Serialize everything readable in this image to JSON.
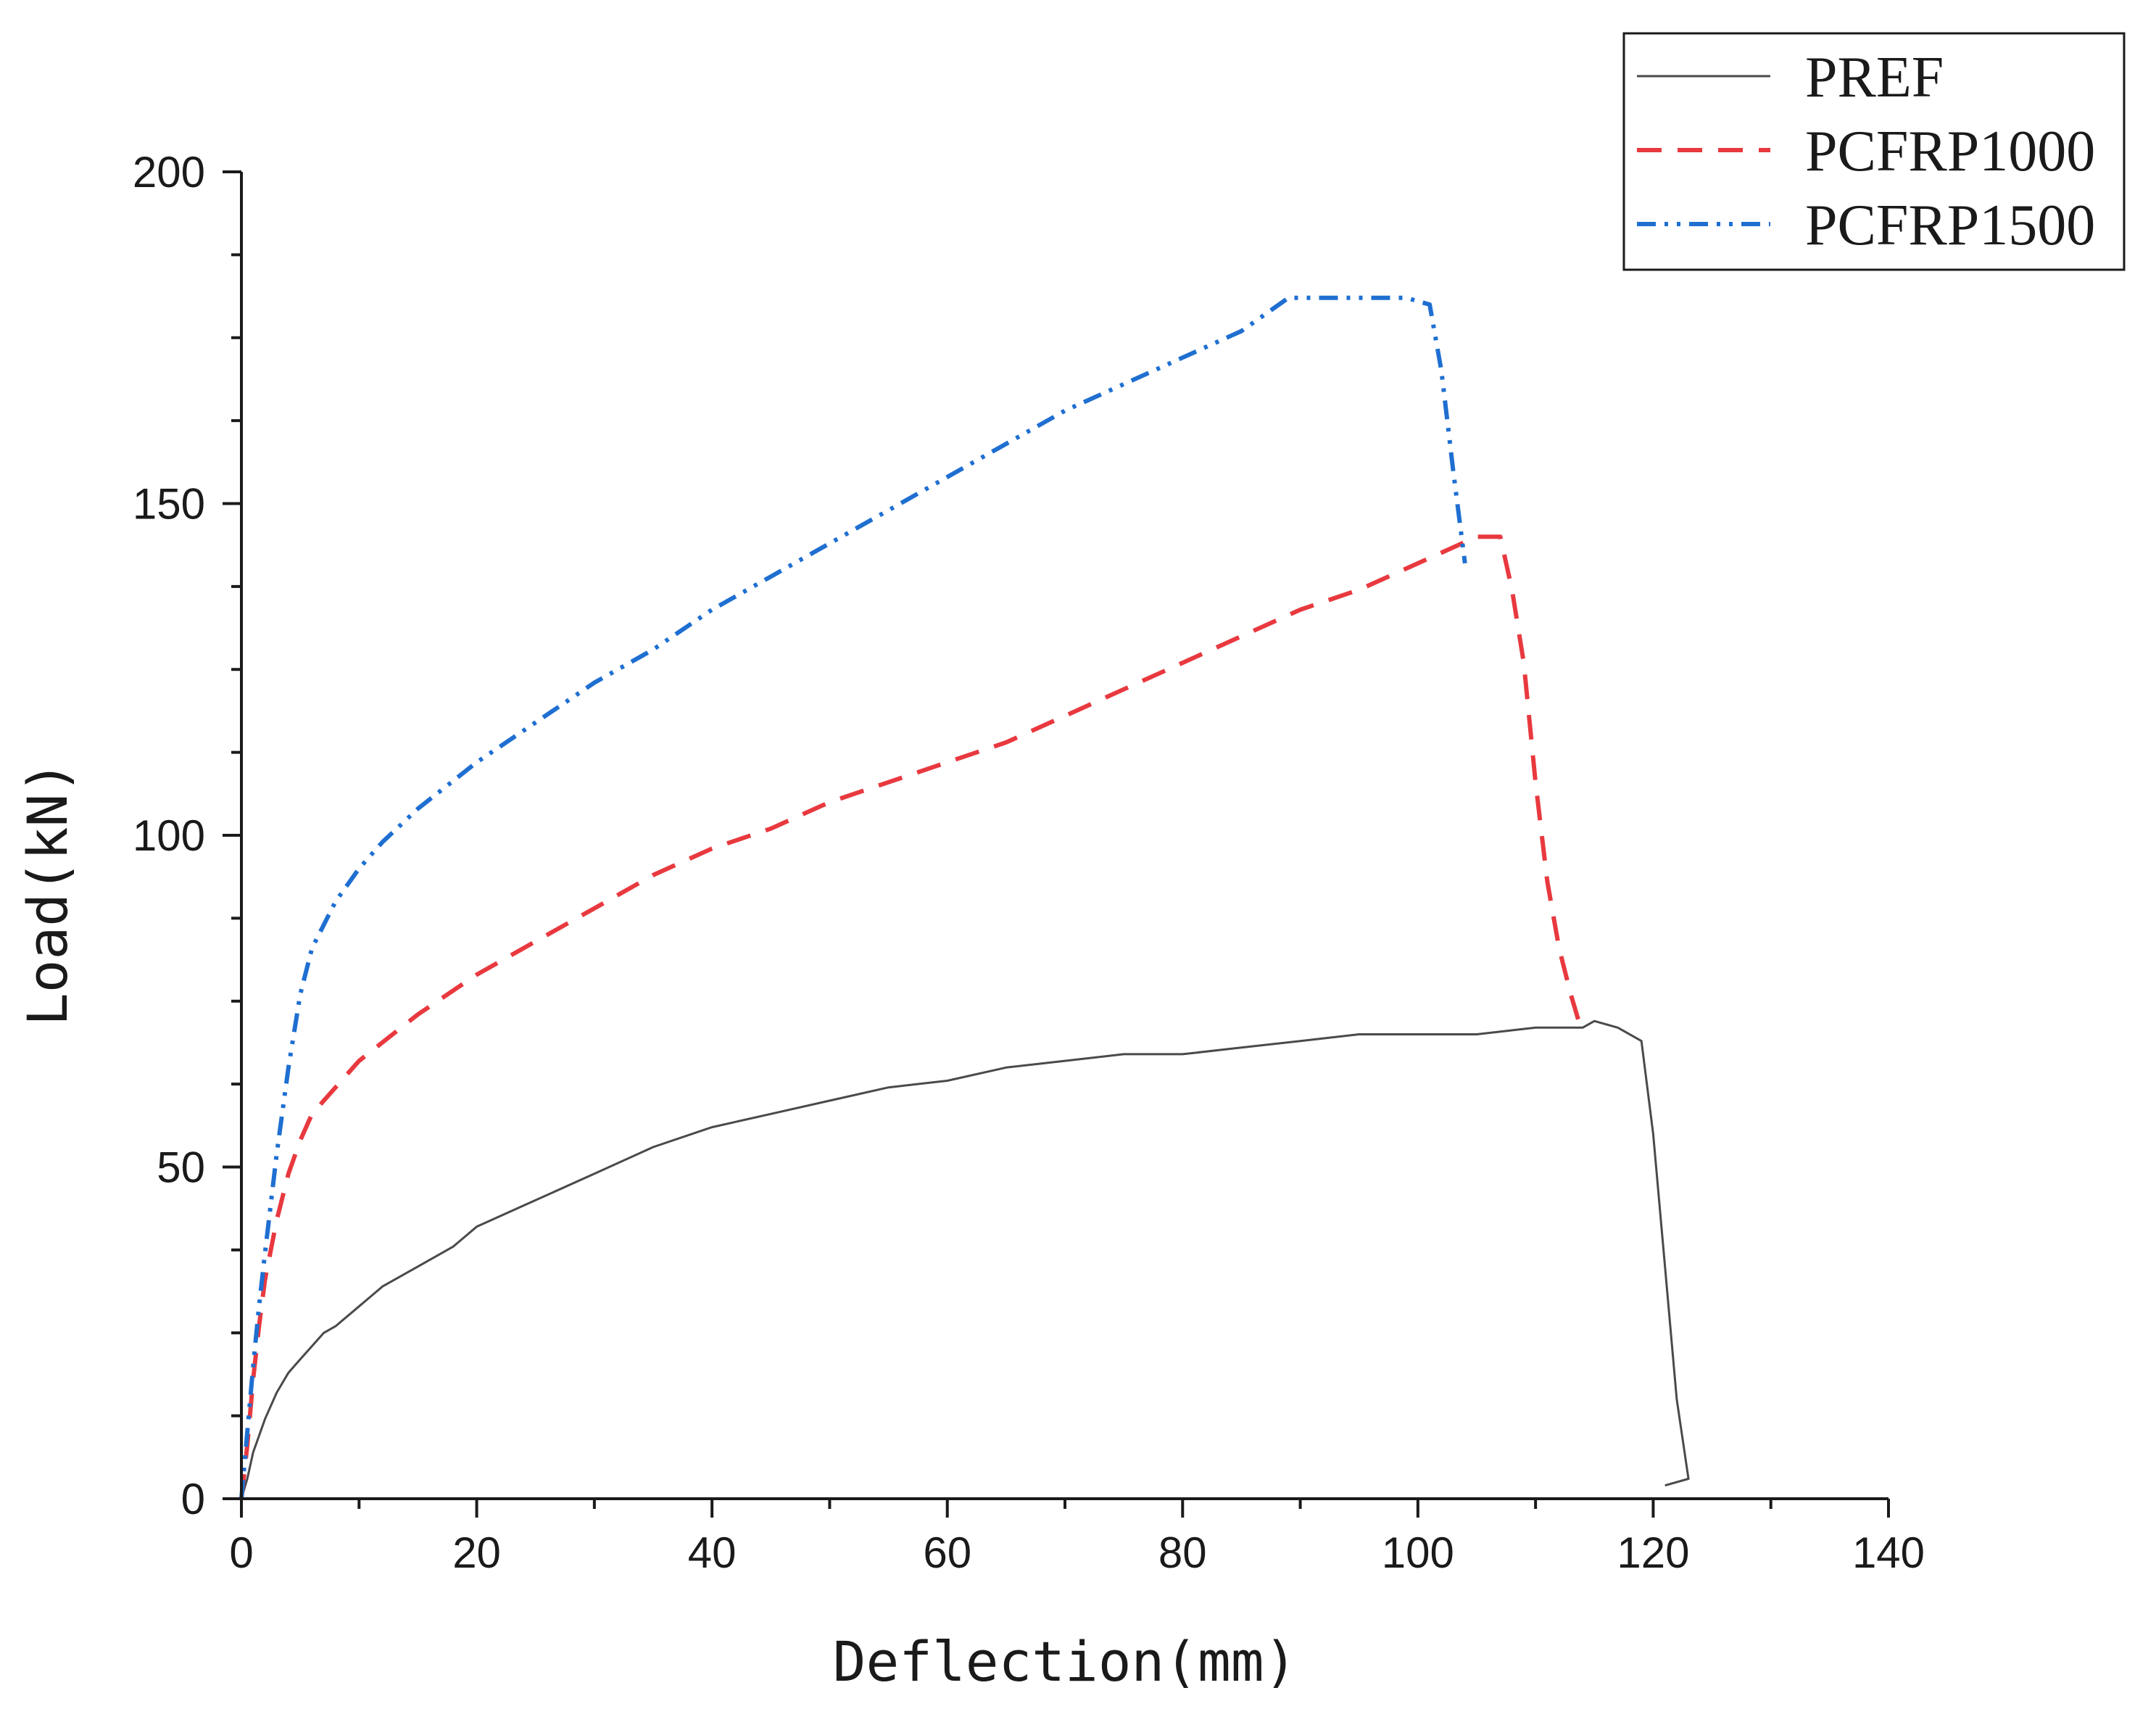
{
  "chart_data": {
    "type": "line",
    "title": "",
    "xlabel": "Deflection(mm)",
    "ylabel": "Load(kN)",
    "xlim": [
      0,
      140
    ],
    "ylim": [
      0,
      200
    ],
    "x_ticks": [
      0,
      20,
      40,
      60,
      80,
      100,
      120,
      140
    ],
    "y_ticks": [
      0,
      50,
      100,
      150,
      200
    ],
    "x_tick_labels": [
      "0",
      "20",
      "40",
      "60",
      "80",
      "100",
      "120",
      "140"
    ],
    "y_tick_labels": [
      "0",
      "50",
      "100",
      "150",
      "200"
    ],
    "grid": false,
    "legend_position": "top-right",
    "series": [
      {
        "name": "PREF",
        "color": "#4a4a4a",
        "style": "solid",
        "x": [
          0,
          0.5,
          1,
          2,
          3,
          4,
          5,
          6,
          7,
          8,
          10,
          12,
          15,
          18,
          20,
          25,
          30,
          35,
          40,
          45,
          50,
          55,
          60,
          65,
          70,
          75,
          80,
          85,
          90,
          95,
          100,
          105,
          110,
          114,
          115,
          117,
          119,
          120,
          121,
          122,
          123,
          121
        ],
        "y": [
          0,
          3,
          7,
          12,
          16,
          19,
          21,
          23,
          25,
          26,
          29,
          32,
          35,
          38,
          41,
          45,
          49,
          53,
          56,
          58,
          60,
          62,
          63,
          65,
          66,
          67,
          67,
          68,
          69,
          70,
          70,
          70,
          71,
          71,
          72,
          71,
          69,
          55,
          35,
          15,
          3,
          2
        ]
      },
      {
        "name": "PCFRP1000",
        "color": "#e8393f",
        "style": "dashed",
        "x": [
          0,
          0.5,
          1,
          1.5,
          2,
          3,
          4,
          5,
          6,
          8,
          10,
          15,
          20,
          25,
          30,
          35,
          40,
          45,
          50,
          55,
          60,
          65,
          70,
          75,
          80,
          85,
          90,
          95,
          100,
          105,
          107,
          108,
          109,
          110,
          111,
          112,
          113,
          114
        ],
        "y": [
          0,
          8,
          18,
          26,
          33,
          42,
          49,
          54,
          58,
          62,
          66,
          73,
          79,
          84,
          89,
          94,
          98,
          101,
          105,
          108,
          111,
          114,
          118,
          122,
          126,
          130,
          134,
          137,
          141,
          145,
          145,
          137,
          126,
          108,
          93,
          83,
          76,
          70
        ]
      },
      {
        "name": "PCFRP1500",
        "color": "#1f6fd1",
        "style": "dash-dot-dot",
        "x": [
          0,
          0.5,
          1,
          1.5,
          2,
          3,
          4,
          5,
          6,
          8,
          10,
          12,
          15,
          20,
          25,
          30,
          35,
          40,
          45,
          50,
          55,
          60,
          65,
          70,
          75,
          80,
          85,
          89,
          92,
          95,
          99,
          101,
          102,
          103,
          104
        ],
        "y": [
          0,
          10,
          20,
          29,
          37,
          52,
          65,
          76,
          83,
          90,
          95,
          99,
          104,
          111,
          117,
          123,
          128,
          134,
          139,
          144,
          149,
          154,
          159,
          164,
          168,
          172,
          176,
          181,
          181,
          181,
          181,
          180,
          170,
          155,
          141
        ]
      }
    ]
  }
}
